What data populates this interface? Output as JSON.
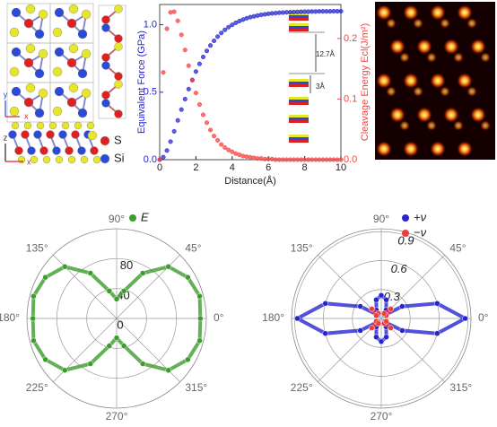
{
  "chart_data": [
    {
      "type": "line",
      "xlabel": "Distance(Å)",
      "ylabel": "Equivalent Force (GPa)",
      "y2label": "Cleavage Energy Ecl(J/m²)",
      "x": [
        0,
        0.2,
        0.4,
        0.6,
        0.8,
        1,
        1.2,
        1.4,
        1.6,
        1.8,
        2,
        2.2,
        2.4,
        2.6,
        2.8,
        3,
        3.2,
        3.4,
        3.6,
        3.8,
        4,
        4.2,
        4.4,
        4.6,
        4.8,
        5,
        5.2,
        5.4,
        5.6,
        5.8,
        6,
        6.2,
        6.4,
        6.6,
        6.8,
        7,
        7.2,
        7.4,
        7.6,
        7.8,
        8,
        8.2,
        8.4,
        8.6,
        8.8,
        9,
        9.2,
        9.4,
        9.6,
        9.8,
        10
      ],
      "xlim": [
        0,
        10
      ],
      "xticks": [
        0,
        2,
        4,
        6,
        8,
        10
      ],
      "ylim": [
        0,
        1.15
      ],
      "yticks": [
        {
          "value": 0,
          "label": "0.0"
        },
        0.5,
        {
          "value": 1,
          "label": "1.0"
        }
      ],
      "y2lim": [
        0,
        0.256
      ],
      "y2ticks": [
        {
          "value": 0,
          "label": "0.0"
        },
        0.1,
        0.2
      ],
      "series": [
        {
          "color": "#2626d0",
          "values": [
            0,
            0.019,
            0.068,
            0.134,
            0.21,
            0.291,
            0.371,
            0.449,
            0.523,
            0.591,
            0.653,
            0.71,
            0.761,
            0.806,
            0.846,
            0.881,
            0.912,
            0.939,
            0.962,
            0.982,
            0.999,
            1.014,
            1.027,
            1.038,
            1.048,
            1.056,
            1.062,
            1.068,
            1.073,
            1.077,
            1.081,
            1.084,
            1.086,
            1.089,
            1.09,
            1.092,
            1.093,
            1.094,
            1.095,
            1.096,
            1.097,
            1.097,
            1.098,
            1.098,
            1.099,
            1.099,
            1.099,
            1.099,
            1.1,
            1.1,
            1.1
          ]
        },
        {
          "color": "#f04545",
          "axis": "y2",
          "values": [
            0,
            0.144,
            0.216,
            0.243,
            0.244,
            0.229,
            0.206,
            0.181,
            0.155,
            0.131,
            0.11,
            0.091,
            0.074,
            0.061,
            0.049,
            0.039,
            0.032,
            0.025,
            0.02,
            0.016,
            0.013,
            0.01,
            0.008,
            0.006,
            0.005,
            0.004,
            0.003,
            0.002,
            0.002,
            0.001,
            0.001,
            0.001,
            0,
            0,
            0,
            0,
            0,
            0,
            0,
            0,
            0,
            0,
            0,
            0,
            0,
            0,
            0,
            0,
            0,
            0,
            0
          ]
        }
      ]
    },
    {
      "type": "polar",
      "rlim": [
        0,
        120
      ],
      "rticks": [
        0,
        40,
        80
      ],
      "thetaticks": [
        {
          "value": 0,
          "label": "0°"
        },
        {
          "value": 45,
          "label": "45°"
        },
        {
          "value": 90,
          "label": "90°"
        },
        {
          "value": 135,
          "label": "135°"
        },
        {
          "value": 180,
          "label": "180°"
        },
        {
          "value": 225,
          "label": "225°"
        },
        {
          "value": 270,
          "label": "270°"
        },
        {
          "value": 315,
          "label": "315°"
        }
      ],
      "theta": [
        0,
        15,
        30,
        45,
        60,
        75,
        90,
        105,
        120,
        135,
        150,
        165,
        180,
        195,
        210,
        225,
        240,
        255,
        270,
        285,
        300,
        315,
        330,
        345
      ],
      "series": [
        {
          "name": "E",
          "color": "#3c9c2c",
          "values": [
            112,
            115,
            110,
            98,
            70,
            38,
            26,
            38,
            70,
            98,
            110,
            115,
            112,
            115,
            110,
            98,
            70,
            38,
            26,
            38,
            70,
            98,
            110,
            115
          ]
        }
      ]
    },
    {
      "type": "polar",
      "rlim": [
        0,
        0.93
      ],
      "rticks": [
        0.3,
        0.6,
        0.9
      ],
      "thetaticks": [
        {
          "value": 0,
          "label": "0°"
        },
        {
          "value": 45,
          "label": "45°"
        },
        {
          "value": 90,
          "label": "90°"
        },
        {
          "value": 135,
          "label": "135°"
        },
        {
          "value": 180,
          "label": "180°"
        },
        {
          "value": 225,
          "label": "225°"
        },
        {
          "value": 270,
          "label": "270°"
        },
        {
          "value": 315,
          "label": "315°"
        }
      ],
      "theta": [
        0,
        15,
        30,
        45,
        60,
        75,
        90,
        105,
        120,
        135,
        150,
        165,
        180,
        195,
        210,
        225,
        240,
        255,
        270,
        285,
        300,
        315,
        330,
        345
      ],
      "series": [
        {
          "name": "+ν",
          "color": "#2626d0",
          "values": [
            0.87,
            0.6,
            0.25,
            0.05,
            0.1,
            0.2,
            0.24,
            0.2,
            0.1,
            0.05,
            0.25,
            0.6,
            0.87,
            0.6,
            0.25,
            0.05,
            0.1,
            0.2,
            0.24,
            0.2,
            0.1,
            0.05,
            0.25,
            0.6
          ]
        },
        {
          "name": "−ν",
          "color": "#f03c3c",
          "values": [
            null,
            null,
            0.06,
            0.14,
            0.06,
            null,
            null,
            null,
            0.06,
            0.14,
            0.06,
            null,
            null,
            null,
            0.06,
            0.14,
            0.06,
            null,
            null,
            null,
            0.06,
            0.14,
            0.06,
            null
          ]
        }
      ]
    }
  ],
  "structure": {
    "legend": [
      "S",
      "Si"
    ],
    "top_axes": [
      "y",
      "x"
    ],
    "side_axes": [
      "z",
      "x"
    ]
  },
  "inset": {
    "labels": [
      "12.7Å",
      "3Å"
    ]
  }
}
